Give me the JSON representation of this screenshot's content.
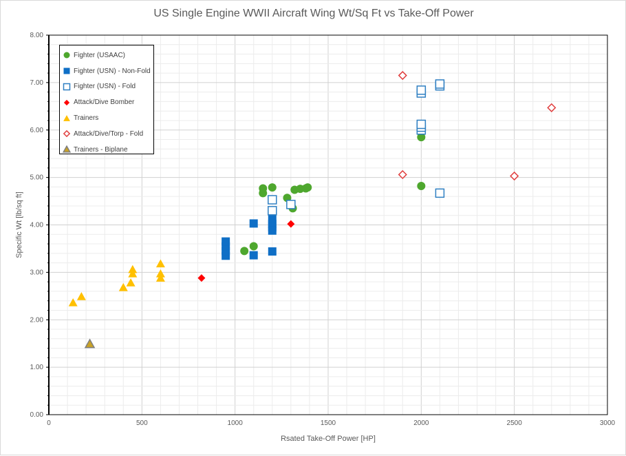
{
  "chart_data": {
    "type": "scatter",
    "title": "US Single Engine WWII Aircraft Wing Wt/Sq Ft vs Take-Off Power",
    "xlabel": "Rsated Take-Off Power [HP]",
    "ylabel": "Specific Wt [lb/sq ft]",
    "xlim": [
      0,
      3000
    ],
    "ylim": [
      0,
      8
    ],
    "xticks": [
      "0",
      "500",
      "1000",
      "1500",
      "2000",
      "2500",
      "3000"
    ],
    "yticks": [
      "0.00",
      "1.00",
      "2.00",
      "3.00",
      "4.00",
      "5.00",
      "6.00",
      "7.00",
      "8.00"
    ],
    "grid": true,
    "legend_position": "top-left",
    "series": [
      {
        "name": "Fighter (USAAC)",
        "marker": "circle",
        "color": "#4ea72e",
        "filled": true,
        "points": [
          [
            1050,
            3.45
          ],
          [
            1100,
            3.55
          ],
          [
            1150,
            4.77
          ],
          [
            1150,
            4.67
          ],
          [
            1200,
            4.79
          ],
          [
            1280,
            4.57
          ],
          [
            1310,
            4.35
          ],
          [
            1320,
            4.74
          ],
          [
            1350,
            4.76
          ],
          [
            1380,
            4.77
          ],
          [
            1390,
            4.79
          ],
          [
            2000,
            5.85
          ],
          [
            2000,
            4.82
          ]
        ]
      },
      {
        "name": "Fighter (USN) - Non-Fold",
        "marker": "square",
        "color": "#0f6fc6",
        "filled": true,
        "points": [
          [
            950,
            3.35
          ],
          [
            950,
            3.45
          ],
          [
            950,
            3.55
          ],
          [
            950,
            3.65
          ],
          [
            1100,
            4.03
          ],
          [
            1100,
            3.36
          ],
          [
            1200,
            4.12
          ],
          [
            1200,
            4.02
          ],
          [
            1200,
            3.95
          ],
          [
            1200,
            3.88
          ],
          [
            1200,
            3.44
          ]
        ]
      },
      {
        "name": "Fighter (USN) - Fold",
        "marker": "square",
        "color": "#2e7fc2",
        "filled": false,
        "points": [
          [
            1200,
            4.53
          ],
          [
            1200,
            4.3
          ],
          [
            1300,
            4.43
          ],
          [
            2000,
            6.78
          ],
          [
            2000,
            6.84
          ],
          [
            2000,
            6.0
          ],
          [
            2000,
            6.06
          ],
          [
            2000,
            6.12
          ],
          [
            2100,
            6.93
          ],
          [
            2100,
            6.97
          ],
          [
            2100,
            4.67
          ]
        ]
      },
      {
        "name": "Attack/Dive Bomber",
        "marker": "diamond",
        "color": "#ff0000",
        "filled": true,
        "points": [
          [
            820,
            2.88
          ],
          [
            1300,
            4.02
          ]
        ]
      },
      {
        "name": "Trainers",
        "marker": "triangle",
        "color": "#ffc000",
        "filled": true,
        "points": [
          [
            130,
            2.36
          ],
          [
            175,
            2.49
          ],
          [
            400,
            2.68
          ],
          [
            440,
            2.78
          ],
          [
            450,
            2.97
          ],
          [
            450,
            3.06
          ],
          [
            600,
            2.88
          ],
          [
            600,
            2.97
          ],
          [
            600,
            3.18
          ]
        ]
      },
      {
        "name": "Attack/Dive/Torp - Fold",
        "marker": "diamond",
        "color": "#e03c3c",
        "filled": false,
        "points": [
          [
            1900,
            7.15
          ],
          [
            1900,
            5.06
          ],
          [
            2500,
            5.03
          ],
          [
            2700,
            6.47
          ]
        ]
      },
      {
        "name": "Trainers - Biplane",
        "marker": "triangle",
        "color": "#c9a227",
        "stroke": "#7f7f7f",
        "filled": true,
        "points": [
          [
            220,
            1.49
          ]
        ]
      }
    ]
  }
}
